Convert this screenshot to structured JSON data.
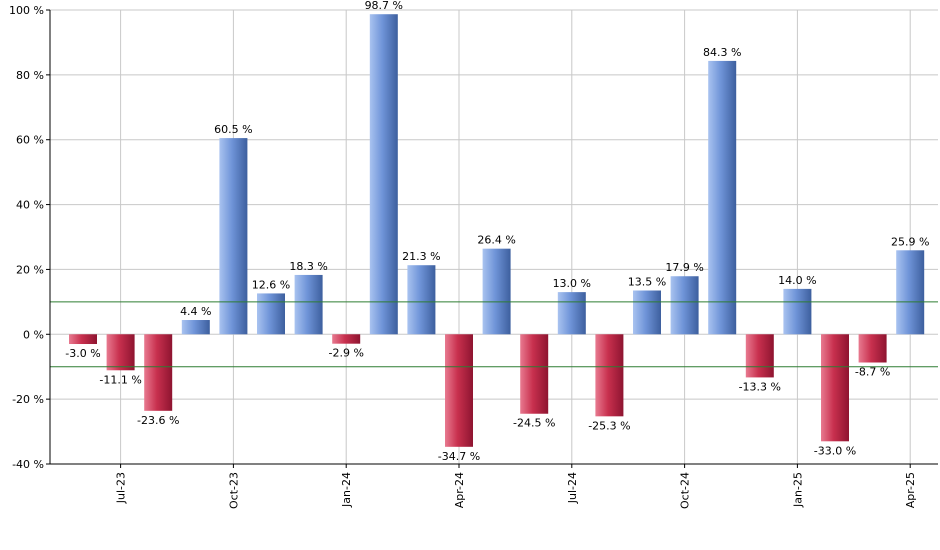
{
  "chart_data": {
    "type": "bar",
    "title": "",
    "xlabel": "",
    "ylabel": "",
    "ylim": [
      -40,
      100
    ],
    "y_ticks": [
      100,
      80,
      60,
      40,
      20,
      0,
      -20,
      -40
    ],
    "y_tick_labels": [
      "100 %",
      "80 %",
      "60 %",
      "40 %",
      "20 %",
      "0 %",
      "-20 %",
      "-40 %"
    ],
    "x_tick_labels": [
      {
        "label": "Jul-23",
        "index": 1
      },
      {
        "label": "Oct-23",
        "index": 4
      },
      {
        "label": "Jan-24",
        "index": 7
      },
      {
        "label": "Apr-24",
        "index": 10
      },
      {
        "label": "Jul-24",
        "index": 13
      },
      {
        "label": "Oct-24",
        "index": 16
      },
      {
        "label": "Jan-25",
        "index": 19
      },
      {
        "label": "Apr-25",
        "index": 22
      }
    ],
    "reference_lines": [
      10,
      -10
    ],
    "grid": true,
    "values": [
      -3.0,
      -11.1,
      -23.6,
      4.4,
      60.5,
      12.6,
      18.3,
      -2.9,
      98.7,
      21.3,
      -34.7,
      26.4,
      -24.5,
      13.0,
      -25.3,
      13.5,
      17.9,
      84.3,
      -13.3,
      14.0,
      -33.0,
      -8.7,
      25.9
    ],
    "labels": [
      "-3.0 %",
      "-11.1 %",
      "-23.6 %",
      "4.4 %",
      "60.5 %",
      "12.6 %",
      "18.3 %",
      "-2.9 %",
      "98.7 %",
      "21.3 %",
      "-34.7 %",
      "26.4 %",
      "-24.5 %",
      "13.0 %",
      "-25.3 %",
      "13.5 %",
      "17.9 %",
      "84.3 %",
      "-13.3 %",
      "14.0 %",
      "-33.0 %",
      "-8.7 %",
      "25.9 %"
    ],
    "colors": {
      "positive": "#6f94d8",
      "positive_light": "#a9c3f0",
      "positive_dark": "#3d5f9e",
      "negative": "#c8304e",
      "negative_light": "#e87a90",
      "negative_dark": "#8e1430",
      "reference_line": "#2e7d32",
      "grid": "#c8c8c8",
      "axis": "#000000"
    }
  }
}
